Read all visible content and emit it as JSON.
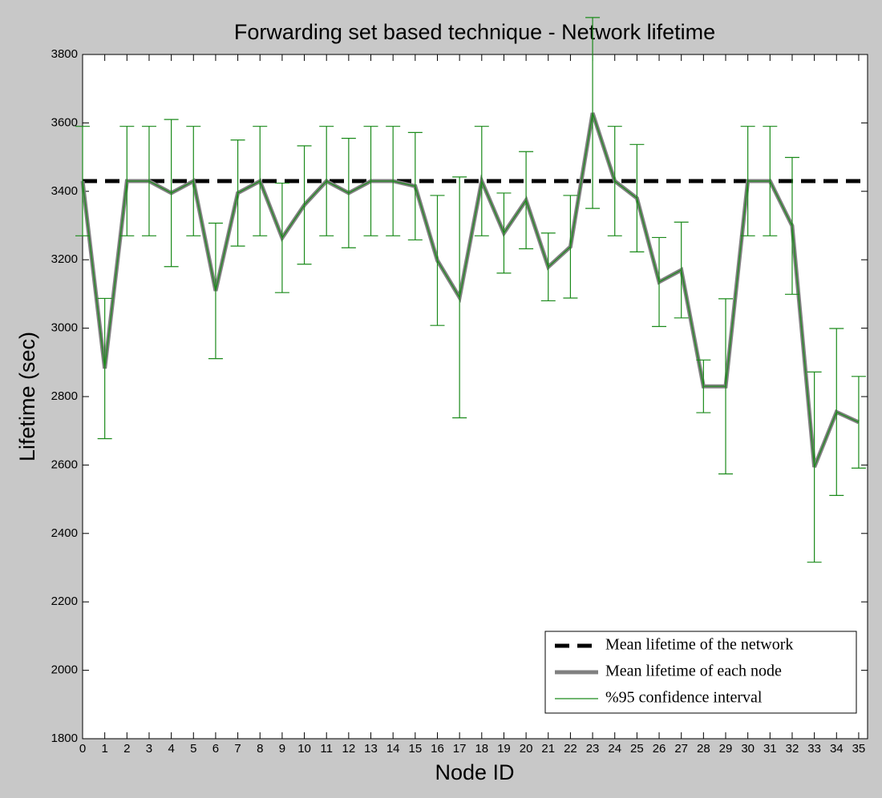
{
  "chart_data": {
    "type": "line",
    "title": "Forwarding set based technique - Network lifetime",
    "xlabel": "Node ID",
    "ylabel": "Lifetime (sec)",
    "x": [
      0,
      1,
      2,
      3,
      4,
      5,
      6,
      7,
      8,
      9,
      10,
      11,
      12,
      13,
      14,
      15,
      16,
      17,
      18,
      19,
      20,
      21,
      22,
      23,
      24,
      25,
      26,
      27,
      28,
      29,
      30,
      31,
      32,
      33,
      34,
      35
    ],
    "xlim": [
      0,
      35.4
    ],
    "xticks": [
      0,
      1,
      2,
      3,
      4,
      5,
      6,
      7,
      8,
      9,
      10,
      11,
      12,
      13,
      14,
      15,
      16,
      17,
      18,
      19,
      20,
      21,
      22,
      23,
      24,
      25,
      26,
      27,
      28,
      29,
      30,
      31,
      32,
      33,
      34,
      35
    ],
    "ylim": [
      1800,
      3800
    ],
    "yticks": [
      1800,
      2000,
      2200,
      2400,
      2600,
      2800,
      3000,
      3200,
      3400,
      3600,
      3800
    ],
    "mean_line": {
      "name": "Mean lifetime of the network",
      "color": "#000000",
      "value": 3430
    },
    "series": [
      {
        "name": "Mean lifetime of each node",
        "color": "#808080",
        "values": [
          3430,
          2882,
          3430,
          3430,
          3395,
          3430,
          3109,
          3395,
          3430,
          3264,
          3360,
          3430,
          3395,
          3430,
          3430,
          3415,
          3198,
          3090,
          3430,
          3278,
          3374,
          3179,
          3238,
          3629,
          3430,
          3380,
          3135,
          3170,
          2830,
          2830,
          3430,
          3430,
          3299,
          2594,
          2755,
          2725
        ]
      },
      {
        "name": "%95 confidence interval",
        "color": "#1a8a1a",
        "errors": [
          160,
          205,
          160,
          160,
          215,
          160,
          198,
          155,
          160,
          160,
          173,
          160,
          160,
          160,
          160,
          157,
          190,
          352,
          160,
          117,
          142,
          99,
          150,
          279,
          160,
          157,
          130,
          140,
          77,
          256,
          160,
          160,
          200,
          278,
          244,
          134
        ]
      }
    ],
    "legend": "lower right"
  }
}
